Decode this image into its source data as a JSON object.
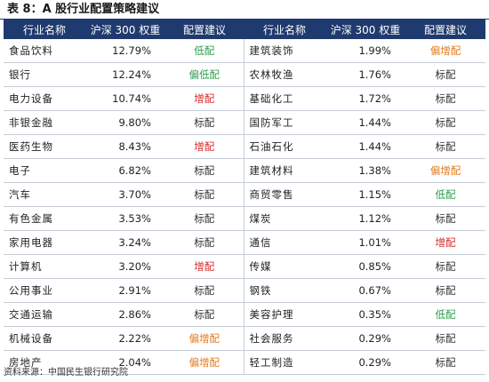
{
  "title": "表 8：A 股行业配置策略建议",
  "headers": [
    "行业名称",
    "沪深 300 权重",
    "配置建议",
    "行业名称",
    "沪深 300 权重",
    "配置建议"
  ],
  "colors": {
    "header_bg": "#1f3a6e",
    "低配": "#2e9e4f",
    "偏低配": "#2e9e4f",
    "增配": "#d62a2a",
    "偏增配": "#e07b1f",
    "标配": "#333333"
  },
  "rows": [
    [
      {
        "name": "食品饮料",
        "weight": "12.79%",
        "rec": "低配"
      },
      {
        "name": "建筑装饰",
        "weight": "1.99%",
        "rec": "偏增配"
      }
    ],
    [
      {
        "name": "银行",
        "weight": "12.24%",
        "rec": "偏低配"
      },
      {
        "name": "农林牧渔",
        "weight": "1.76%",
        "rec": "标配"
      }
    ],
    [
      {
        "name": "电力设备",
        "weight": "10.74%",
        "rec": "增配"
      },
      {
        "name": "基础化工",
        "weight": "1.72%",
        "rec": "标配"
      }
    ],
    [
      {
        "name": "非银金融",
        "weight": "9.80%",
        "rec": "标配"
      },
      {
        "name": "国防军工",
        "weight": "1.44%",
        "rec": "标配"
      }
    ],
    [
      {
        "name": "医药生物",
        "weight": "8.43%",
        "rec": "增配"
      },
      {
        "name": "石油石化",
        "weight": "1.44%",
        "rec": "标配"
      }
    ],
    [
      {
        "name": "电子",
        "weight": "6.82%",
        "rec": "标配"
      },
      {
        "name": "建筑材料",
        "weight": "1.38%",
        "rec": "偏增配"
      }
    ],
    [
      {
        "name": "汽车",
        "weight": "3.70%",
        "rec": "标配"
      },
      {
        "name": "商贸零售",
        "weight": "1.15%",
        "rec": "低配"
      }
    ],
    [
      {
        "name": "有色金属",
        "weight": "3.53%",
        "rec": "标配"
      },
      {
        "name": "煤炭",
        "weight": "1.12%",
        "rec": "标配"
      }
    ],
    [
      {
        "name": "家用电器",
        "weight": "3.24%",
        "rec": "标配"
      },
      {
        "name": "通信",
        "weight": "1.01%",
        "rec": "增配"
      }
    ],
    [
      {
        "name": "计算机",
        "weight": "3.20%",
        "rec": "增配"
      },
      {
        "name": "传媒",
        "weight": "0.85%",
        "rec": "标配"
      }
    ],
    [
      {
        "name": "公用事业",
        "weight": "2.91%",
        "rec": "标配"
      },
      {
        "name": "钢铁",
        "weight": "0.67%",
        "rec": "标配"
      }
    ],
    [
      {
        "name": "交通运输",
        "weight": "2.86%",
        "rec": "标配"
      },
      {
        "name": "美容护理",
        "weight": "0.35%",
        "rec": "低配"
      }
    ],
    [
      {
        "name": "机械设备",
        "weight": "2.22%",
        "rec": "偏增配"
      },
      {
        "name": "社会服务",
        "weight": "0.29%",
        "rec": "标配"
      }
    ],
    [
      {
        "name": "房地产",
        "weight": "2.04%",
        "rec": "偏增配"
      },
      {
        "name": "轻工制造",
        "weight": "0.29%",
        "rec": "标配"
      }
    ]
  ],
  "source": "资料来源：中国民生银行研究院"
}
